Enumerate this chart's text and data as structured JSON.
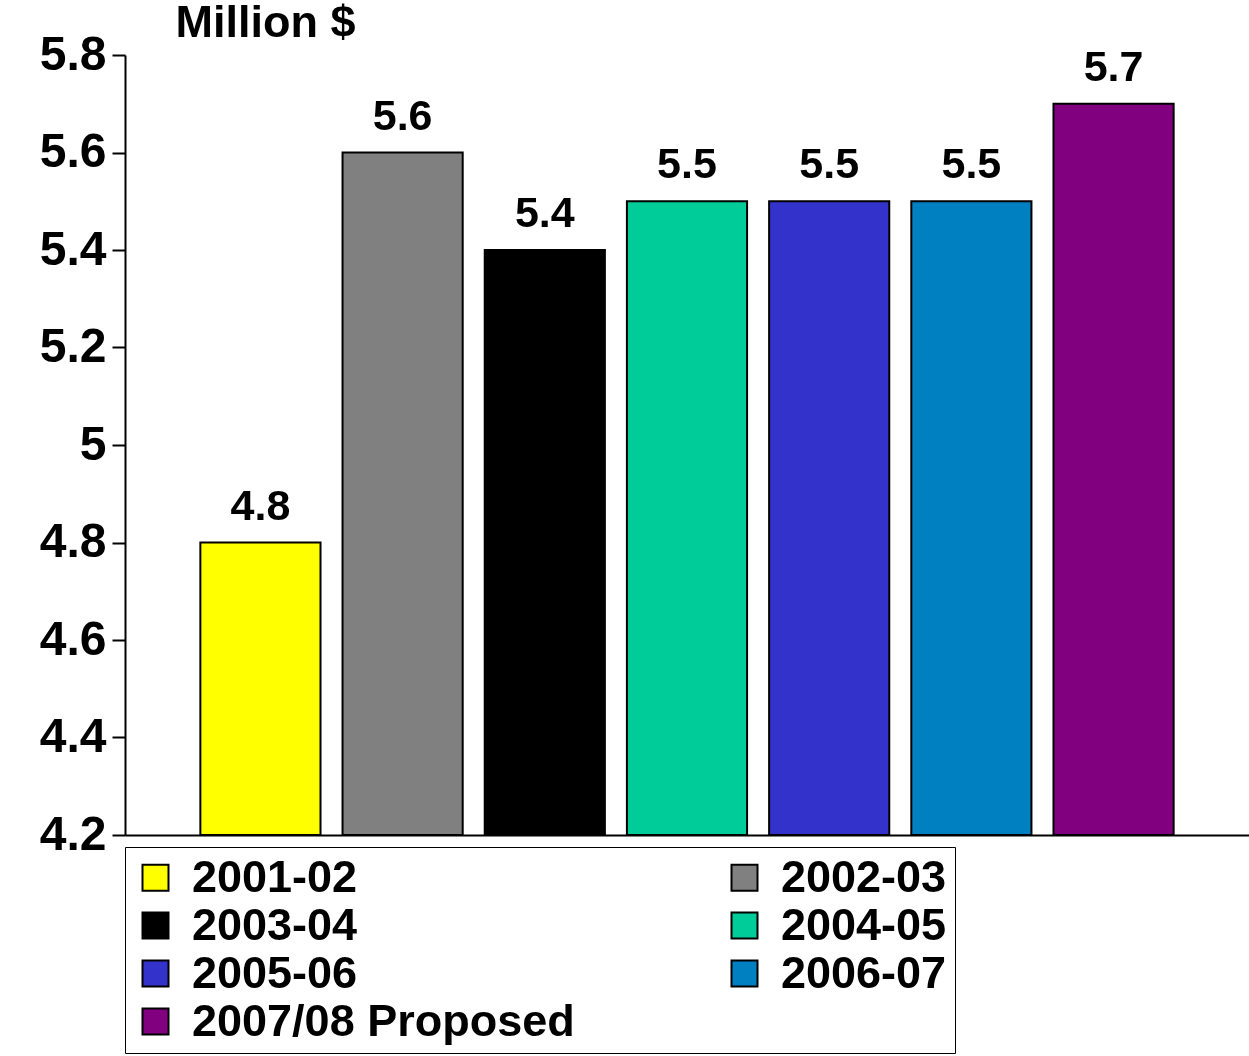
{
  "chart_data": {
    "type": "bar",
    "ylabel": "Million $",
    "categories": [
      null
    ],
    "series": [
      {
        "name": "2001-02",
        "color": "#ffff00",
        "values": [
          4.8
        ]
      },
      {
        "name": "2002-03",
        "color": "#808080",
        "values": [
          5.6
        ]
      },
      {
        "name": "2003-04",
        "color": "#000000",
        "values": [
          5.4
        ]
      },
      {
        "name": "2004-05",
        "color": "#00cc99",
        "values": [
          5.5
        ]
      },
      {
        "name": "2005-06",
        "color": "#3333cc",
        "values": [
          5.5
        ]
      },
      {
        "name": "2006-07",
        "color": "#0080c0",
        "values": [
          5.5
        ]
      },
      {
        "name": "2007/08 Proposed",
        "color": "#800080",
        "values": [
          5.7
        ]
      }
    ],
    "ylim": [
      4.2,
      5.8
    ],
    "yticks": [
      4.2,
      4.4,
      4.6,
      4.8,
      5,
      5.2,
      5.4,
      5.6,
      5.8
    ],
    "data_labels": true,
    "legend": "bottom",
    "tick_labels": "y"
  }
}
